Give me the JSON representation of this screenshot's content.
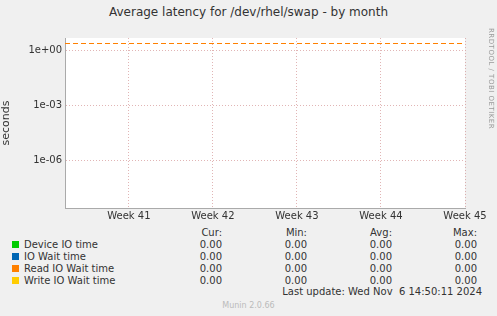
{
  "chart_data": {
    "type": "line",
    "title": "Average latency for /dev/rhel/swap - by month",
    "y_label": "seconds",
    "log": "y",
    "grid": true,
    "xlim": [
      40.24,
      45
    ],
    "xticks": [
      {
        "value": 41,
        "label": "Week 41"
      },
      {
        "value": 42,
        "label": "Week 42"
      },
      {
        "value": 43,
        "label": "Week 43"
      },
      {
        "value": 44,
        "label": "Week 44"
      },
      {
        "value": 45,
        "label": "Week 45"
      }
    ],
    "ylim": [
      2.6e-09,
      5
    ],
    "yticks": [
      {
        "value": 1e-06,
        "label": "1e-06"
      },
      {
        "value": 0.001,
        "label": "1e-03"
      },
      {
        "value": 1,
        "label": "1e+00"
      }
    ],
    "reference_lines": [
      {
        "value": 2.5,
        "color": "#ff8000",
        "line_style": "dashed"
      }
    ],
    "legend_columns": [
      "Cur:",
      "Min:",
      "Avg:",
      "Max:"
    ],
    "series": [
      {
        "name": "Device IO time",
        "color": "#00cc00",
        "stats": [
          "0.00",
          "0.00",
          "0.00",
          "0.00"
        ]
      },
      {
        "name": "IO Wait time",
        "color": "#0066b3",
        "stats": [
          "0.00",
          "0.00",
          "0.00",
          "0.00"
        ]
      },
      {
        "name": "Read IO Wait time",
        "color": "#ff8000",
        "stats": [
          "0.00",
          "0.00",
          "0.00",
          "0.00"
        ]
      },
      {
        "name": "Write IO Wait time",
        "color": "#ffcc00",
        "stats": [
          "0.00",
          "0.00",
          "0.00",
          "0.00"
        ]
      }
    ],
    "footer": "Last update: Wed Nov  6 14:50:11 2024",
    "credit": "Munin 2.0.66",
    "side_text": "RRDTOOL / TOBI OETIKER"
  }
}
